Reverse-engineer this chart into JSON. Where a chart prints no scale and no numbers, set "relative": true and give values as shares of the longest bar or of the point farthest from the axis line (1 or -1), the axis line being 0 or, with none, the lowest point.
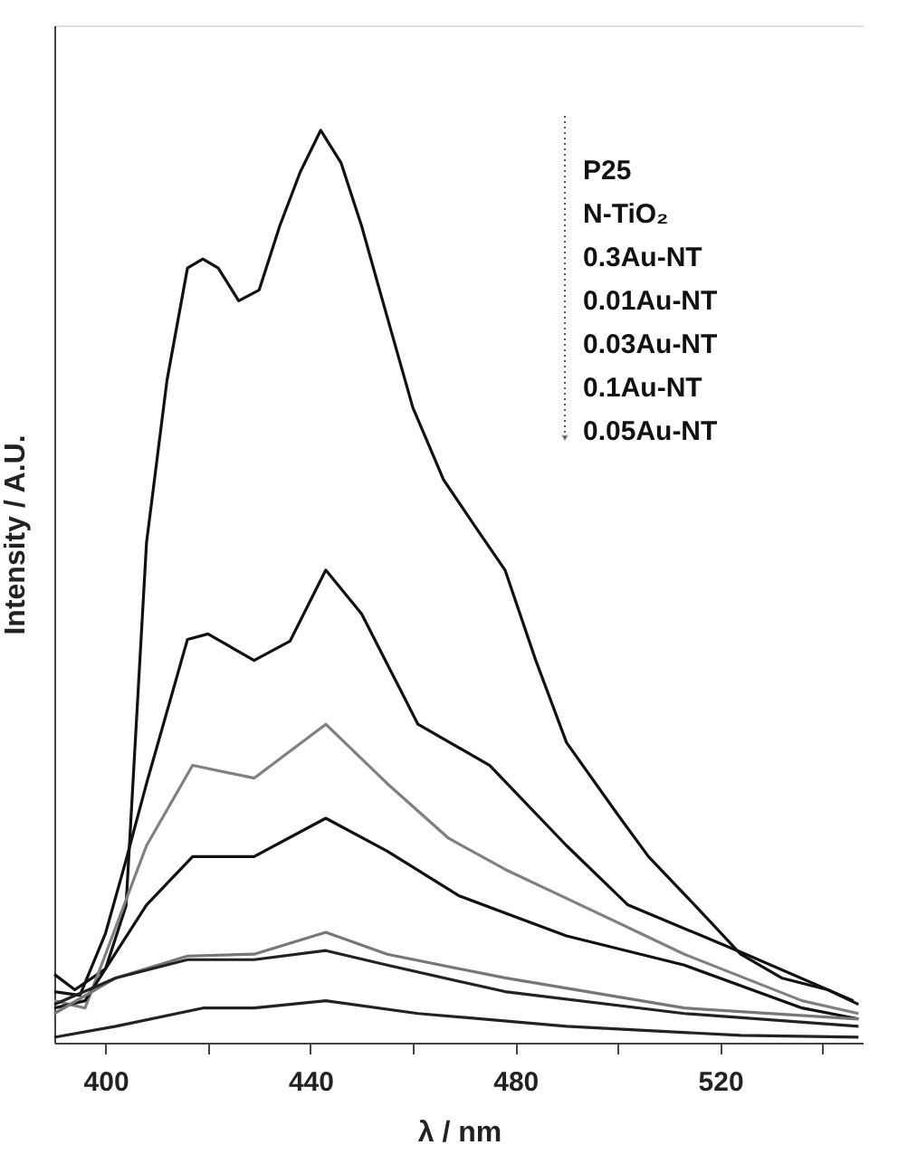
{
  "chart_data": {
    "type": "line",
    "xlabel": "λ / nm",
    "ylabel": "Intensity / A.U.",
    "relative": true,
    "xlim": [
      390,
      548
    ],
    "xticks": [
      400,
      {
        "value": 420,
        "label": null
      },
      440,
      {
        "value": 460,
        "label": null
      },
      480,
      {
        "value": 500,
        "label": null
      },
      520,
      {
        "value": 540,
        "label": null
      }
    ],
    "grid": false,
    "marker": "none",
    "line_style": "solid",
    "annotations": [
      "P25",
      "N-TiO₂",
      "0.3Au-NT",
      "0.01Au-NT",
      "0.03Au-NT",
      "0.1Au-NT",
      "0.05Au-NT"
    ],
    "series": [
      {
        "color": "#111111",
        "x": [
          390,
          394,
          400,
          404,
          408,
          412,
          416,
          419,
          422,
          426,
          430,
          434,
          438,
          442,
          446,
          450,
          454,
          460,
          466,
          472,
          478,
          484,
          490,
          500,
          506,
          515,
          524,
          532,
          541,
          547
        ],
        "values": [
          0.075,
          0.058,
          0.081,
          0.15,
          0.548,
          0.726,
          0.849,
          0.859,
          0.849,
          0.813,
          0.825,
          0.895,
          0.954,
          1.0,
          0.964,
          0.895,
          0.815,
          0.696,
          0.617,
          0.567,
          0.518,
          0.419,
          0.329,
          0.25,
          0.204,
          0.151,
          0.097,
          0.071,
          0.058,
          0.042
        ]
      },
      {
        "color": "#111111",
        "x": [
          390,
          395,
          400,
          404,
          408,
          416,
          420,
          429,
          436,
          443,
          450,
          455,
          461,
          475,
          490,
          502,
          525,
          546
        ],
        "values": [
          0.056,
          0.052,
          0.12,
          0.2,
          0.284,
          0.442,
          0.448,
          0.419,
          0.44,
          0.518,
          0.47,
          0.415,
          0.349,
          0.304,
          0.216,
          0.151,
          0.097,
          0.046
        ]
      },
      {
        "color": "#808080",
        "x": [
          390,
          396,
          400,
          408,
          417,
          429,
          443,
          455,
          467,
          478,
          495,
          513,
          536,
          547
        ],
        "values": [
          0.046,
          0.038,
          0.097,
          0.216,
          0.304,
          0.29,
          0.349,
          0.284,
          0.224,
          0.19,
          0.145,
          0.097,
          0.046,
          0.032
        ]
      },
      {
        "color": "#111111",
        "x": [
          390,
          396,
          408,
          417,
          429,
          443,
          455,
          469,
          490,
          513,
          536,
          547
        ],
        "values": [
          0.038,
          0.046,
          0.151,
          0.204,
          0.204,
          0.246,
          0.21,
          0.161,
          0.117,
          0.085,
          0.038,
          0.026
        ]
      },
      {
        "color": "#777777",
        "x": [
          390,
          402,
          416,
          429,
          443,
          455,
          478,
          513,
          547
        ],
        "values": [
          0.032,
          0.071,
          0.095,
          0.097,
          0.121,
          0.097,
          0.071,
          0.038,
          0.026
        ]
      },
      {
        "color": "#222222",
        "x": [
          390,
          402,
          416,
          429,
          443,
          455,
          478,
          513,
          547
        ],
        "values": [
          0.042,
          0.071,
          0.091,
          0.091,
          0.101,
          0.085,
          0.056,
          0.032,
          0.018
        ]
      },
      {
        "color": "#222222",
        "x": [
          390,
          402,
          419,
          429,
          443,
          461,
          490,
          524,
          547
        ],
        "values": [
          0.006,
          0.018,
          0.038,
          0.038,
          0.046,
          0.032,
          0.018,
          0.008,
          0.006
        ]
      }
    ]
  }
}
